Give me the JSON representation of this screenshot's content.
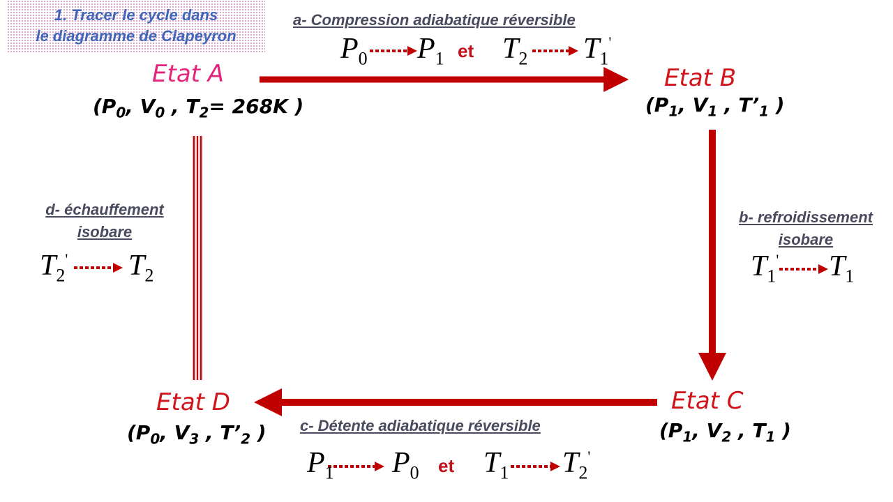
{
  "title": {
    "line1": "1.  Tracer le cycle dans",
    "line2": "le diagramme de Clapeyron"
  },
  "states": {
    "A": {
      "label": "Etat A",
      "p": "P",
      "p_sub": "0",
      "v": "V",
      "v_sub": "0",
      "t": "T",
      "t_sub": "2",
      "t_value": "= 268K"
    },
    "B": {
      "label": "Etat B",
      "p": "P",
      "p_sub": "1",
      "v": "V",
      "v_sub": "1",
      "t": "T’",
      "t_sub": "1"
    },
    "C": {
      "label": "Etat C",
      "p": "P",
      "p_sub": "1",
      "v": "V",
      "v_sub": "2",
      "t": "T",
      "t_sub": "1"
    },
    "D": {
      "label": "Etat D",
      "p": "P",
      "p_sub": "0",
      "v": "V",
      "v_sub": "3",
      "t": "T’",
      "t_sub": "2"
    }
  },
  "processes": {
    "a": {
      "label": "a- Compression adiabatique réversible",
      "from1": "P",
      "from1_sub": "0",
      "to1": "P",
      "to1_sub": "1",
      "et": "et",
      "from2": "T",
      "from2_sub": "2",
      "to2": "T",
      "to2_sub": "1",
      "to2_sup": "'"
    },
    "b": {
      "label_line1": "b- refroidissement",
      "label_line2": "isobare",
      "from": "T",
      "from_sub": "1",
      "from_sup": "'",
      "to": "T",
      "to_sub": "1"
    },
    "c": {
      "label": "c- Détente adiabatique réversible",
      "from1": "P",
      "from1_sub": "1",
      "to1": "P",
      "to1_sub": "0",
      "et": "et",
      "from2": "T",
      "from2_sub": "1",
      "to2": "T",
      "to2_sub": "2",
      "to2_sup": "'"
    },
    "d": {
      "label_line1": "d- échauffement",
      "label_line2": "isobare",
      "from": "T",
      "from_sub": "2",
      "from_sup": "'",
      "to": "T",
      "to_sub": "2"
    }
  },
  "colors": {
    "arrow": "#c00000",
    "state_a": "#e4237a",
    "state": "#d1131a",
    "title": "#3f66b8"
  }
}
